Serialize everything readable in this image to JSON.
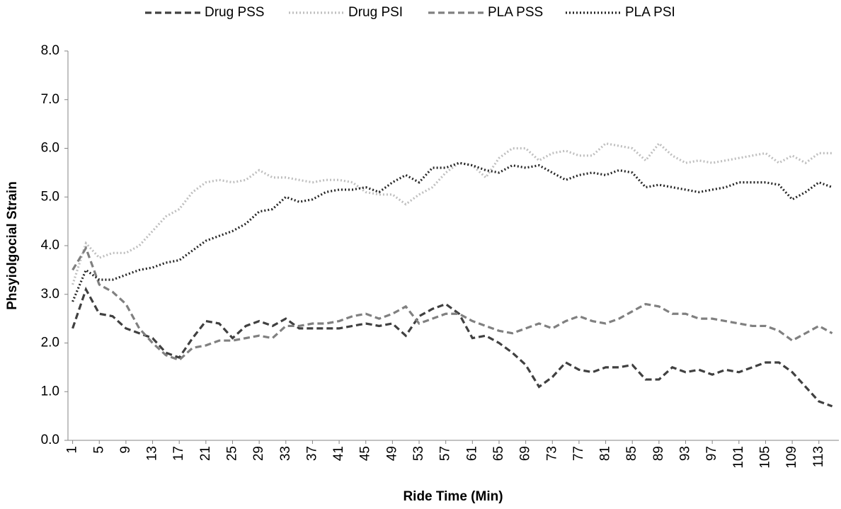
{
  "chart_data": {
    "type": "line",
    "x_label": "Ride Time (Min)",
    "y_label": "Phsyiolgocial Strain",
    "x": [
      1,
      3,
      5,
      7,
      9,
      11,
      13,
      15,
      17,
      19,
      21,
      23,
      25,
      27,
      29,
      31,
      33,
      35,
      37,
      39,
      41,
      43,
      45,
      47,
      49,
      51,
      53,
      55,
      57,
      59,
      61,
      63,
      65,
      67,
      69,
      71,
      73,
      75,
      77,
      79,
      81,
      83,
      85,
      87,
      89,
      91,
      93,
      95,
      97,
      99,
      101,
      103,
      105,
      107,
      109,
      111,
      113,
      115
    ],
    "xlim": [
      0.3,
      116
    ],
    "xticks": [
      1,
      5,
      9,
      13,
      17,
      21,
      25,
      29,
      33,
      37,
      41,
      45,
      49,
      53,
      57,
      61,
      65,
      69,
      73,
      77,
      81,
      85,
      89,
      93,
      97,
      101,
      105,
      109,
      113
    ],
    "ylim": [
      0,
      8
    ],
    "yticks": [
      {
        "value": 0,
        "label": "0.0"
      },
      {
        "value": 1,
        "label": "1.0"
      },
      {
        "value": 2,
        "label": "2.0"
      },
      {
        "value": 3,
        "label": "3.0"
      },
      {
        "value": 4,
        "label": "4.0"
      },
      {
        "value": 5,
        "label": "5.0"
      },
      {
        "value": 6,
        "label": "6.0"
      },
      {
        "value": 7,
        "label": "7.0"
      },
      {
        "value": 8,
        "label": "8.0"
      }
    ],
    "legend": "top",
    "series": [
      {
        "name": "Drug PSS",
        "color": "#404040",
        "dash": "dashed",
        "values": [
          2.3,
          3.1,
          2.6,
          2.55,
          2.3,
          2.2,
          2.1,
          1.8,
          1.7,
          2.1,
          2.45,
          2.4,
          2.1,
          2.35,
          2.45,
          2.35,
          2.5,
          2.3,
          2.3,
          2.3,
          2.3,
          2.35,
          2.4,
          2.35,
          2.4,
          2.15,
          2.55,
          2.7,
          2.8,
          2.6,
          2.1,
          2.15,
          2.0,
          1.8,
          1.55,
          1.1,
          1.3,
          1.6,
          1.45,
          1.4,
          1.5,
          1.5,
          1.55,
          1.25,
          1.25,
          1.5,
          1.4,
          1.45,
          1.35,
          1.45,
          1.4,
          1.5,
          1.6,
          1.6,
          1.4,
          1.1,
          0.8,
          0.7
        ]
      },
      {
        "name": "Drug PSI",
        "color": "#bfbfbf",
        "dash": "dotted",
        "values": [
          3.2,
          4.05,
          3.75,
          3.85,
          3.85,
          4.0,
          4.3,
          4.6,
          4.75,
          5.1,
          5.3,
          5.35,
          5.3,
          5.35,
          5.55,
          5.4,
          5.4,
          5.35,
          5.3,
          5.35,
          5.35,
          5.3,
          5.1,
          5.05,
          5.05,
          4.85,
          5.05,
          5.2,
          5.5,
          5.7,
          5.65,
          5.4,
          5.8,
          6.0,
          6.0,
          5.75,
          5.9,
          5.95,
          5.85,
          5.85,
          6.1,
          6.05,
          6.0,
          5.75,
          6.1,
          5.85,
          5.7,
          5.75,
          5.7,
          5.75,
          5.8,
          5.85,
          5.9,
          5.7,
          5.85,
          5.7,
          5.9,
          5.9
        ]
      },
      {
        "name": "PLA PSS",
        "color": "#808080",
        "dash": "dashed",
        "values": [
          3.5,
          3.95,
          3.2,
          3.05,
          2.8,
          2.3,
          2.0,
          1.75,
          1.65,
          1.9,
          1.95,
          2.05,
          2.05,
          2.1,
          2.15,
          2.1,
          2.35,
          2.35,
          2.4,
          2.4,
          2.45,
          2.55,
          2.6,
          2.5,
          2.6,
          2.75,
          2.4,
          2.5,
          2.6,
          2.6,
          2.45,
          2.35,
          2.25,
          2.2,
          2.3,
          2.4,
          2.3,
          2.45,
          2.55,
          2.45,
          2.4,
          2.5,
          2.65,
          2.8,
          2.75,
          2.6,
          2.6,
          2.5,
          2.5,
          2.45,
          2.4,
          2.35,
          2.35,
          2.25,
          2.05,
          2.2,
          2.35,
          2.2
        ]
      },
      {
        "name": "PLA PSI",
        "color": "#262626",
        "dash": "dotted",
        "values": [
          2.85,
          3.5,
          3.3,
          3.3,
          3.4,
          3.5,
          3.55,
          3.65,
          3.7,
          3.9,
          4.1,
          4.2,
          4.3,
          4.45,
          4.7,
          4.75,
          5.0,
          4.9,
          4.95,
          5.1,
          5.15,
          5.15,
          5.2,
          5.1,
          5.3,
          5.45,
          5.3,
          5.6,
          5.6,
          5.7,
          5.65,
          5.55,
          5.5,
          5.65,
          5.6,
          5.65,
          5.5,
          5.35,
          5.45,
          5.5,
          5.45,
          5.55,
          5.5,
          5.2,
          5.25,
          5.2,
          5.15,
          5.1,
          5.15,
          5.2,
          5.3,
          5.3,
          5.3,
          5.25,
          4.95,
          5.1,
          5.3,
          5.2
        ]
      }
    ]
  }
}
